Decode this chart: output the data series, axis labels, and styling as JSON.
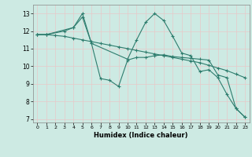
{
  "xlabel": "Humidex (Indice chaleur)",
  "xlim": [
    -0.5,
    23.5
  ],
  "ylim": [
    6.8,
    13.5
  ],
  "yticks": [
    7,
    8,
    9,
    10,
    11,
    12,
    13
  ],
  "xticks": [
    0,
    1,
    2,
    3,
    4,
    5,
    6,
    7,
    8,
    9,
    10,
    11,
    12,
    13,
    14,
    15,
    16,
    17,
    18,
    19,
    20,
    21,
    22,
    23
  ],
  "bg_color": "#cdeae3",
  "grid_color": "#b0d8cf",
  "line_color": "#2e7d6e",
  "line1_x": [
    0,
    1,
    2,
    3,
    4,
    5,
    6,
    7,
    8,
    9,
    10,
    11,
    12,
    13,
    14,
    15,
    16,
    17,
    18,
    19,
    20,
    21,
    22,
    23
  ],
  "line1_y": [
    11.8,
    11.8,
    11.75,
    11.7,
    11.6,
    11.5,
    11.4,
    11.3,
    11.2,
    11.1,
    11.0,
    10.9,
    10.8,
    10.7,
    10.6,
    10.5,
    10.4,
    10.3,
    10.2,
    10.05,
    9.9,
    9.75,
    9.55,
    9.35
  ],
  "line2_x": [
    0,
    1,
    3,
    4,
    5,
    6,
    10,
    11,
    12,
    13,
    14,
    15,
    16,
    17,
    18,
    19,
    20,
    21,
    22,
    23
  ],
  "line2_y": [
    11.8,
    11.8,
    12.0,
    12.2,
    12.8,
    11.3,
    10.4,
    11.5,
    12.5,
    13.0,
    12.6,
    11.7,
    10.75,
    10.6,
    9.7,
    9.8,
    9.35,
    8.4,
    7.6,
    7.1
  ],
  "line3_x": [
    0,
    1,
    4,
    5,
    6,
    7,
    8,
    9,
    10,
    11,
    12,
    13,
    14,
    15,
    16,
    17,
    18,
    19,
    20,
    21,
    22,
    23
  ],
  "line3_y": [
    11.8,
    11.8,
    12.2,
    13.0,
    11.3,
    9.3,
    9.2,
    8.85,
    10.35,
    10.5,
    10.5,
    10.6,
    10.65,
    10.55,
    10.5,
    10.45,
    10.4,
    10.35,
    9.5,
    9.35,
    7.6,
    7.1
  ]
}
